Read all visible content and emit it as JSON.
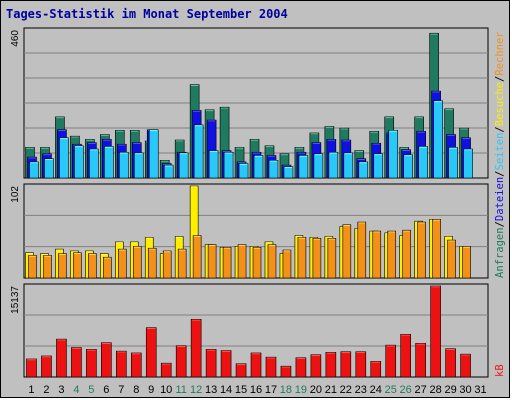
{
  "chart_data": {
    "type": "bar",
    "title": "Tages-Statistik im Monat September 2004",
    "categories": [
      "1",
      "2",
      "3",
      "4",
      "5",
      "6",
      "7",
      "8",
      "9",
      "10",
      "11",
      "12",
      "13",
      "14",
      "15",
      "16",
      "17",
      "18",
      "19",
      "20",
      "21",
      "22",
      "23",
      "24",
      "25",
      "26",
      "27",
      "28",
      "29",
      "30",
      "31"
    ],
    "weekend_days": [
      "4",
      "5",
      "11",
      "12",
      "18",
      "19",
      "25",
      "26"
    ],
    "panels": [
      {
        "name": "requests",
        "ymax_label": "460",
        "ylim": [
          0,
          460
        ],
        "series": [
          {
            "name": "Anfragen",
            "color": "#1f7a5f",
            "values": [
              95,
              95,
              190,
              130,
              120,
              135,
              148,
              148,
              115,
              55,
              118,
              290,
              212,
              220,
              95,
              120,
              100,
              75,
              95,
              140,
              160,
              155,
              85,
              145,
              190,
              95,
              190,
              450,
              215,
              155,
              0
            ]
          },
          {
            "name": "Dateien",
            "color": "#1010e0",
            "values": [
              65,
              75,
              150,
              105,
              110,
              120,
              105,
              110,
              150,
              45,
              80,
              210,
              180,
              85,
              50,
              80,
              70,
              40,
              80,
              110,
              120,
              118,
              60,
              108,
              140,
              88,
              145,
              270,
              135,
              125,
              0
            ]
          },
          {
            "name": "Seiten",
            "color": "#28c8f8",
            "values": [
              50,
              60,
              125,
              100,
              90,
              98,
              80,
              78,
              150,
              40,
              78,
              165,
              85,
              80,
              45,
              70,
              55,
              35,
              70,
              75,
              80,
              78,
              50,
              75,
              148,
              72,
              98,
              240,
              95,
              90,
              0
            ]
          }
        ]
      },
      {
        "name": "visits",
        "ymax_label": "102",
        "ylim": [
          0,
          102
        ],
        "series": [
          {
            "name": "Besuche",
            "color": "#ffee00",
            "values": [
              28,
              27,
              32,
              30,
              30,
              27,
              40,
              40,
              45,
              27,
              46,
              102,
              37,
              34,
              35,
              35,
              40,
              27,
              47,
              45,
              46,
              57,
              55,
              52,
              50,
              47,
              63,
              65,
              46,
              35,
              0
            ]
          },
          {
            "name": "Rechner",
            "color": "#f39018",
            "values": [
              25,
              25,
              27,
              28,
              27,
              23,
              32,
              35,
              33,
              30,
              32,
              47,
              37,
              34,
              37,
              34,
              37,
              31,
              45,
              44,
              44,
              59,
              62,
              52,
              52,
              53,
              62,
              65,
              42,
              35,
              0
            ]
          }
        ]
      },
      {
        "name": "kb",
        "ymax_label": "15137",
        "ylim": [
          0,
          15137
        ],
        "series": [
          {
            "name": "kB",
            "color": "#ee1111",
            "values": [
              3000,
              3500,
              6300,
              4900,
              4600,
              5700,
              4300,
              4000,
              8200,
              2300,
              5200,
              9600,
              4600,
              4400,
              2200,
              4000,
              3300,
              1800,
              3200,
              3700,
              4100,
              4200,
              4200,
              2600,
              5300,
              7100,
              5600,
              15137,
              4700,
              3800,
              0
            ]
          }
        ]
      }
    ],
    "right_labels": {
      "top_parts": [
        "Anfragen",
        "/",
        "Dateien",
        "/",
        "Seiten",
        "/",
        "Besuche",
        "/",
        "Rechner"
      ],
      "bottom": "kB"
    },
    "colors": {
      "background": "#c0c0c0",
      "title": "#0000a0",
      "weekday_label": "#000000",
      "weekend_label": "#1f7a5f",
      "grid": "#808080"
    }
  }
}
